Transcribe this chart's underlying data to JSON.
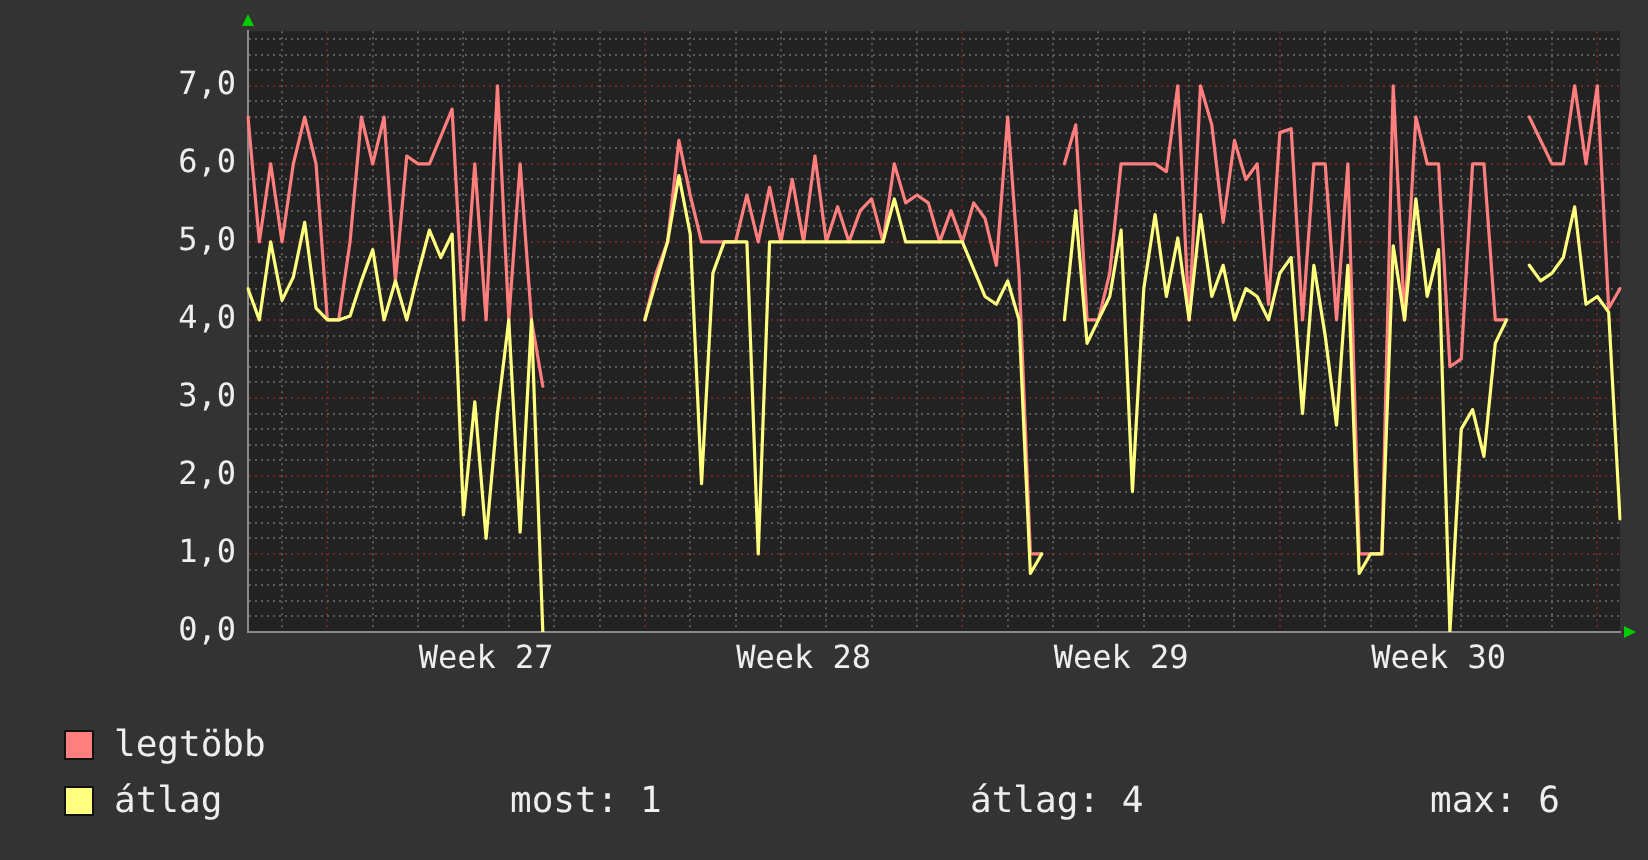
{
  "chart_data": {
    "type": "line",
    "categories": [
      null,
      null,
      null,
      null,
      null,
      null,
      null,
      null,
      null,
      null,
      null,
      null,
      null,
      null,
      null,
      null,
      null,
      null,
      null,
      null,
      null,
      "Week 27",
      null,
      null,
      null,
      null,
      null,
      null,
      null,
      null,
      null,
      null,
      null,
      null,
      null,
      null,
      null,
      null,
      null,
      null,
      null,
      null,
      null,
      null,
      null,
      null,
      null,
      null,
      null,
      "Week 28",
      null,
      null,
      null,
      null,
      null,
      null,
      null,
      null,
      null,
      null,
      null,
      null,
      null,
      null,
      null,
      null,
      null,
      null,
      null,
      null,
      null,
      null,
      null,
      null,
      null,
      null,
      null,
      "Week 29",
      null,
      null,
      null,
      null,
      null,
      null,
      null,
      null,
      null,
      null,
      null,
      null,
      null,
      null,
      null,
      null,
      null,
      null,
      null,
      null,
      null,
      null,
      null,
      null,
      null,
      null,
      null,
      "Week 30",
      null,
      null,
      null,
      null,
      null,
      null,
      null,
      null,
      null,
      null,
      null,
      null,
      null,
      null,
      null,
      null
    ],
    "ylim": [
      0,
      7.7
    ],
    "yticks": [
      {
        "value": 0,
        "label": "0,0"
      },
      {
        "value": 0.2,
        "label": null
      },
      {
        "value": 0.4,
        "label": null
      },
      {
        "value": 0.6,
        "label": null
      },
      {
        "value": 0.8,
        "label": null
      },
      {
        "value": 1,
        "label": "1,0"
      },
      {
        "value": 1.2,
        "label": null
      },
      {
        "value": 1.4,
        "label": null
      },
      {
        "value": 1.6,
        "label": null
      },
      {
        "value": 1.8,
        "label": null
      },
      {
        "value": 2,
        "label": "2,0"
      },
      {
        "value": 2.2,
        "label": null
      },
      {
        "value": 2.4,
        "label": null
      },
      {
        "value": 2.6,
        "label": null
      },
      {
        "value": 2.8,
        "label": null
      },
      {
        "value": 3,
        "label": "3,0"
      },
      {
        "value": 3.2,
        "label": null
      },
      {
        "value": 3.4,
        "label": null
      },
      {
        "value": 3.6,
        "label": null
      },
      {
        "value": 3.8,
        "label": null
      },
      {
        "value": 4,
        "label": "4,0"
      },
      {
        "value": 4.2,
        "label": null
      },
      {
        "value": 4.4,
        "label": null
      },
      {
        "value": 4.6,
        "label": null
      },
      {
        "value": 4.8,
        "label": null
      },
      {
        "value": 5,
        "label": "5,0"
      },
      {
        "value": 5.2,
        "label": null
      },
      {
        "value": 5.4,
        "label": null
      },
      {
        "value": 5.6,
        "label": null
      },
      {
        "value": 5.8,
        "label": null
      },
      {
        "value": 6,
        "label": "6,0"
      },
      {
        "value": 6.2,
        "label": null
      },
      {
        "value": 6.4,
        "label": null
      },
      {
        "value": 6.6,
        "label": null
      },
      {
        "value": 6.8,
        "label": null
      },
      {
        "value": 7,
        "label": "7,0"
      },
      {
        "value": 7.2,
        "label": null
      },
      {
        "value": 7.4,
        "label": null
      },
      {
        "value": 7.6,
        "label": null
      }
    ],
    "grid": true,
    "legend": "bottom",
    "marker": "none",
    "line_style": "solid",
    "annotations": [
      "most: 1",
      "átlag: 4",
      "max: 6"
    ],
    "series": [
      {
        "name": "legtöbb",
        "color": "#ff7f7f",
        "values": [
          6.6,
          5.0,
          6.0,
          5.0,
          6.0,
          6.6,
          6.0,
          4.0,
          4.0,
          5.0,
          6.6,
          6.0,
          6.6,
          4.5,
          6.1,
          6.0,
          6.0,
          6.35,
          6.7,
          4.0,
          6.0,
          4.0,
          7.0,
          4.0,
          6.0,
          4.0,
          3.15,
          null,
          null,
          null,
          null,
          null,
          null,
          null,
          null,
          4.0,
          4.6,
          5.0,
          6.3,
          5.6,
          5.0,
          5.0,
          5.0,
          5.0,
          5.6,
          5.0,
          5.7,
          5.0,
          5.8,
          5.0,
          6.1,
          5.0,
          5.45,
          5.0,
          5.4,
          5.55,
          5.0,
          6.0,
          5.5,
          5.6,
          5.5,
          5.0,
          5.4,
          5.0,
          5.5,
          5.3,
          4.7,
          6.6,
          4.6,
          1.0,
          1.0,
          null,
          6.0,
          6.5,
          4.0,
          4.0,
          4.6,
          6.0,
          6.0,
          6.0,
          6.0,
          5.9,
          7.0,
          4.0,
          7.0,
          6.5,
          5.25,
          6.3,
          5.8,
          6.0,
          4.2,
          6.4,
          6.45,
          4.0,
          6.0,
          6.0,
          4.0,
          6.0,
          1.0,
          1.0,
          1.0,
          7.0,
          4.0,
          6.6,
          6.0,
          6.0,
          3.4,
          3.5,
          6.0,
          6.0,
          4.0,
          4.0,
          null,
          6.6,
          6.3,
          6.0,
          6.0,
          7.0,
          6.0,
          7.0,
          4.15,
          4.4
        ]
      },
      {
        "name": "átlag",
        "color": "#ffff80",
        "values": [
          4.4,
          4.0,
          5.0,
          4.25,
          4.55,
          5.25,
          4.15,
          4.0,
          4.0,
          4.05,
          4.5,
          4.9,
          4.0,
          4.5,
          4.0,
          4.6,
          5.15,
          4.8,
          5.1,
          1.5,
          2.95,
          1.2,
          2.8,
          4.0,
          1.28,
          4.0,
          0.0,
          null,
          null,
          null,
          null,
          null,
          null,
          null,
          null,
          4.0,
          4.5,
          5.0,
          5.85,
          5.1,
          1.9,
          4.6,
          5.0,
          5.0,
          5.0,
          1.0,
          5.0,
          5.0,
          5.0,
          5.0,
          5.0,
          5.0,
          5.0,
          5.0,
          5.0,
          5.0,
          5.0,
          5.55,
          5.0,
          5.0,
          5.0,
          5.0,
          5.0,
          5.0,
          4.65,
          4.3,
          4.2,
          4.5,
          4.0,
          0.75,
          1.0,
          null,
          4.0,
          5.4,
          3.7,
          4.0,
          4.3,
          5.15,
          1.8,
          4.4,
          5.35,
          4.3,
          5.05,
          4.0,
          5.35,
          4.3,
          4.7,
          4.0,
          4.4,
          4.3,
          4.0,
          4.6,
          4.8,
          2.8,
          4.7,
          3.8,
          2.65,
          4.7,
          0.75,
          1.0,
          1.0,
          4.95,
          4.0,
          5.55,
          4.3,
          4.9,
          0.0,
          2.6,
          2.85,
          2.25,
          3.7,
          4.0,
          null,
          4.7,
          4.5,
          4.6,
          4.8,
          5.45,
          4.2,
          4.3,
          4.1,
          1.45
        ]
      }
    ]
  }
}
